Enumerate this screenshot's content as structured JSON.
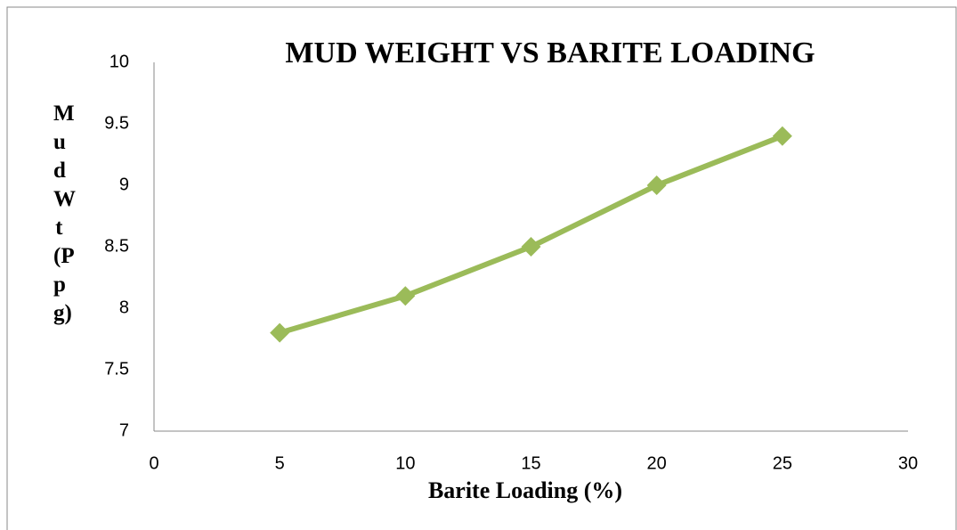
{
  "chart_data": {
    "type": "line",
    "title": "MUD WEIGHT VS BARITE LOADING",
    "x_label": "Barite Loading (%)",
    "y_label": "Mud Wt (Ppg)",
    "x": [
      5,
      10,
      15,
      20,
      25
    ],
    "series": [
      {
        "name": "Mud Wt",
        "color": "#9bbb59",
        "values": [
          7.8,
          8.1,
          8.5,
          9.0,
          9.4
        ]
      }
    ],
    "xlim": [
      0,
      30
    ],
    "xticks": [
      0,
      5,
      10,
      15,
      20,
      25,
      30
    ],
    "ylim": [
      7,
      10
    ],
    "yticks": [
      7,
      7.5,
      8,
      8.5,
      9,
      9.5,
      10
    ],
    "grid": false,
    "legend": false
  }
}
